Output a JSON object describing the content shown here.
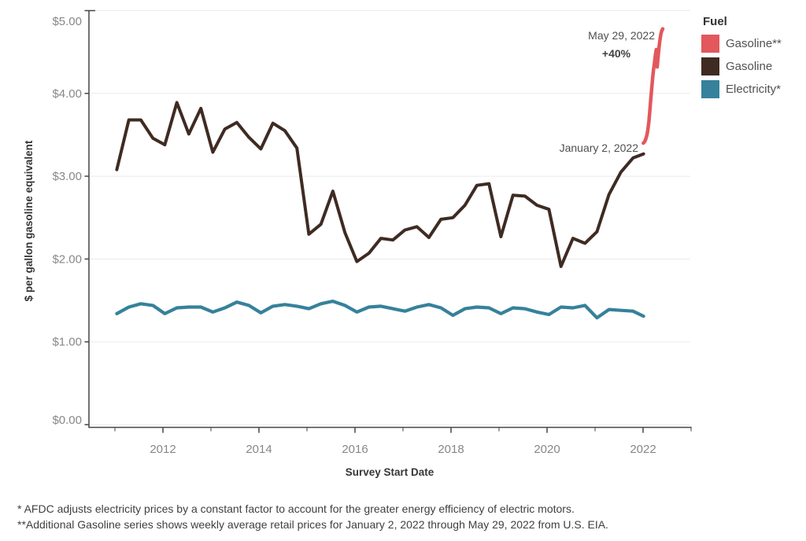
{
  "chart_data": {
    "type": "line",
    "title": "",
    "xlabel": "Survey Start Date",
    "ylabel": "$ per gallon gasoline equivalent",
    "grid": "horizontal",
    "legend_position": "top-right",
    "x_axis": {
      "domain": [
        2010.46,
        2023.0
      ],
      "ticks": [
        2011,
        2012,
        2013,
        2014,
        2015,
        2016,
        2017,
        2018,
        2019,
        2020,
        2021,
        2022,
        2023
      ],
      "labeled_ticks": [
        2012,
        2014,
        2016,
        2018,
        2020,
        2022
      ]
    },
    "y_axis": {
      "domain": [
        0,
        5
      ],
      "ticks": [
        0,
        1,
        2,
        3,
        4,
        5
      ],
      "tick_labels": [
        "$0.00",
        "$1.00",
        "$2.00",
        "$3.00",
        "$4.00",
        "$5.00"
      ]
    },
    "series": [
      {
        "id": "electricity",
        "name": "Electricity*",
        "color": "#36819b",
        "width": 4.2,
        "x": [
          2011.04,
          2011.29,
          2011.54,
          2011.79,
          2012.04,
          2012.29,
          2012.54,
          2012.79,
          2013.04,
          2013.29,
          2013.54,
          2013.79,
          2014.04,
          2014.29,
          2014.54,
          2014.79,
          2015.04,
          2015.29,
          2015.54,
          2015.79,
          2016.04,
          2016.29,
          2016.54,
          2016.79,
          2017.04,
          2017.29,
          2017.54,
          2017.79,
          2018.04,
          2018.29,
          2018.54,
          2018.79,
          2019.04,
          2019.29,
          2019.54,
          2019.79,
          2020.04,
          2020.29,
          2020.54,
          2020.79,
          2021.04,
          2021.29,
          2021.54,
          2021.79,
          2022.01
        ],
        "values": [
          1.34,
          1.42,
          1.46,
          1.44,
          1.34,
          1.41,
          1.42,
          1.42,
          1.36,
          1.41,
          1.48,
          1.44,
          1.35,
          1.43,
          1.45,
          1.43,
          1.4,
          1.46,
          1.49,
          1.44,
          1.36,
          1.42,
          1.43,
          1.4,
          1.37,
          1.42,
          1.45,
          1.41,
          1.32,
          1.4,
          1.42,
          1.41,
          1.34,
          1.41,
          1.4,
          1.36,
          1.33,
          1.42,
          1.41,
          1.44,
          1.29,
          1.39,
          1.38,
          1.37,
          1.31
        ]
      },
      {
        "id": "gasoline",
        "name": "Gasoline",
        "color": "#3f2b22",
        "width": 4,
        "x": [
          2011.04,
          2011.29,
          2011.54,
          2011.79,
          2012.04,
          2012.29,
          2012.54,
          2012.79,
          2013.04,
          2013.29,
          2013.54,
          2013.79,
          2014.04,
          2014.29,
          2014.54,
          2014.79,
          2015.04,
          2015.29,
          2015.54,
          2015.79,
          2016.04,
          2016.29,
          2016.54,
          2016.79,
          2017.04,
          2017.29,
          2017.54,
          2017.79,
          2018.04,
          2018.29,
          2018.54,
          2018.79,
          2019.04,
          2019.29,
          2019.54,
          2019.79,
          2020.04,
          2020.29,
          2020.54,
          2020.79,
          2021.04,
          2021.29,
          2021.54,
          2021.79,
          2022.01
        ],
        "values": [
          3.08,
          3.68,
          3.68,
          3.46,
          3.38,
          3.89,
          3.51,
          3.82,
          3.29,
          3.57,
          3.65,
          3.47,
          3.33,
          3.64,
          3.55,
          3.34,
          2.3,
          2.42,
          2.82,
          2.32,
          1.97,
          2.07,
          2.25,
          2.23,
          2.35,
          2.39,
          2.26,
          2.48,
          2.5,
          2.65,
          2.89,
          2.91,
          2.27,
          2.77,
          2.76,
          2.65,
          2.6,
          1.91,
          2.25,
          2.19,
          2.33,
          2.78,
          3.05,
          3.22,
          3.27
        ]
      },
      {
        "id": "gasoline_weekly",
        "name": "Gasoline**",
        "color": "#e2585c",
        "width": 4.5,
        "x": [
          2022.005,
          2022.024,
          2022.043,
          2022.063,
          2022.082,
          2022.101,
          2022.121,
          2022.14,
          2022.159,
          2022.179,
          2022.198,
          2022.217,
          2022.237,
          2022.256,
          2022.275,
          2022.294,
          2022.314,
          2022.333,
          2022.352,
          2022.372,
          2022.391,
          2022.41
        ],
        "values": [
          3.4,
          3.41,
          3.43,
          3.46,
          3.5,
          3.57,
          3.66,
          3.78,
          3.92,
          4.05,
          4.18,
          4.28,
          4.37,
          4.46,
          4.53,
          4.32,
          4.45,
          4.56,
          4.65,
          4.72,
          4.76,
          4.78
        ]
      }
    ],
    "annotations": {
      "may29": {
        "text": "May 29, 2022",
        "target_value": 4.78
      },
      "pct_change": {
        "text": "+40%"
      },
      "jan2": {
        "text": "January 2, 2022",
        "target_value": 3.4
      }
    }
  },
  "legend": {
    "title": "Fuel",
    "items": [
      {
        "label": "Gasoline**",
        "color": "#e2585c"
      },
      {
        "label": "Gasoline",
        "color": "#3f2b22"
      },
      {
        "label": "Electricity*",
        "color": "#36819b"
      }
    ]
  },
  "footnotes": {
    "line1": "* AFDC adjusts electricity prices by a constant factor to account for the greater energy efficiency of electric motors.",
    "line2": "**Additional Gasoline series shows weekly average retail prices for January 2, 2022 through May 29, 2022 from U.S. EIA."
  }
}
